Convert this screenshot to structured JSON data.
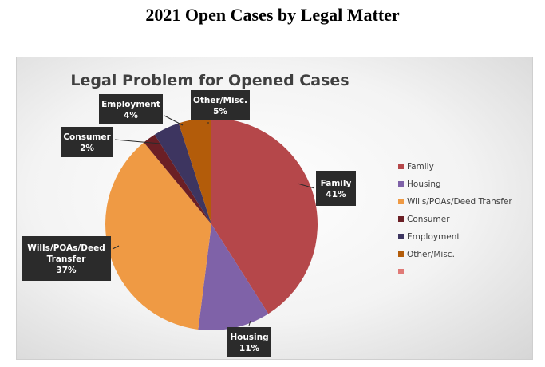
{
  "page": {
    "title": "2021 Open Cases by Legal Matter"
  },
  "chart_data": {
    "type": "pie",
    "title": "Legal Problem for Opened Cases",
    "start_angle_deg": 0,
    "direction": "clockwise",
    "legend_position": "right",
    "slices": [
      {
        "name": "Family",
        "value": 41,
        "percent_label": "41%",
        "label_lines": [
          "Family"
        ],
        "color": "#b5474a"
      },
      {
        "name": "Housing",
        "value": 11,
        "percent_label": "11%",
        "label_lines": [
          "Housing"
        ],
        "color": "#7f62a8"
      },
      {
        "name": "Wills/POAs/Deed Transfer",
        "value": 37,
        "percent_label": "37%",
        "label_lines": [
          "Wills/POAs/Deed",
          "Transfer"
        ],
        "color": "#ef9a44"
      },
      {
        "name": "Consumer",
        "value": 2,
        "percent_label": "2%",
        "label_lines": [
          "Consumer"
        ],
        "color": "#6b1f25"
      },
      {
        "name": "Employment",
        "value": 4,
        "percent_label": "4%",
        "label_lines": [
          "Employment"
        ],
        "color": "#3d3560"
      },
      {
        "name": "Other/Misc.",
        "value": 5,
        "percent_label": "5%",
        "label_lines": [
          "Other/Misc."
        ],
        "color": "#b35c0a"
      }
    ],
    "legend": [
      {
        "label": "Family",
        "color": "#b5474a"
      },
      {
        "label": "Housing",
        "color": "#7f62a8"
      },
      {
        "label": "Wills/POAs/Deed Transfer",
        "color": "#ef9a44"
      },
      {
        "label": "Consumer",
        "color": "#6b1f25"
      },
      {
        "label": "Employment",
        "color": "#3d3560"
      },
      {
        "label": "Other/Misc.",
        "color": "#b35c0a"
      },
      {
        "label": "",
        "color": "#e07a77"
      }
    ],
    "callout_color": "#2b2b2b"
  }
}
